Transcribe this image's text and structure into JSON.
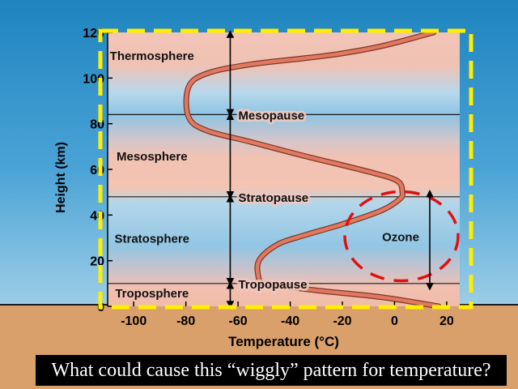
{
  "chart_data": {
    "type": "line",
    "xlabel": "Temperature (°C)",
    "ylabel": "Height (km)",
    "xlim": [
      -110,
      25
    ],
    "ylim": [
      0,
      120
    ],
    "x_ticks": [
      -100,
      -80,
      -60,
      -40,
      -20,
      0,
      20
    ],
    "y_ticks": [
      0,
      20,
      40,
      60,
      80,
      100,
      120
    ],
    "series": [
      {
        "points": [
          {
            "x": 17,
            "y": 0
          },
          {
            "x": -5,
            "y": 4
          },
          {
            "x": -30,
            "y": 7
          },
          {
            "x": -50,
            "y": 10
          },
          {
            "x": -52,
            "y": 12
          },
          {
            "x": -52,
            "y": 20
          },
          {
            "x": -45,
            "y": 27
          },
          {
            "x": -35,
            "y": 31
          },
          {
            "x": -20,
            "y": 36
          },
          {
            "x": -5,
            "y": 42
          },
          {
            "x": 2,
            "y": 47
          },
          {
            "x": 3,
            "y": 50
          },
          {
            "x": 1,
            "y": 55
          },
          {
            "x": -10,
            "y": 59
          },
          {
            "x": -35,
            "y": 66
          },
          {
            "x": -55,
            "y": 72
          },
          {
            "x": -72,
            "y": 77
          },
          {
            "x": -79,
            "y": 83
          },
          {
            "x": -79,
            "y": 96
          },
          {
            "x": -72,
            "y": 102
          },
          {
            "x": -55,
            "y": 106
          },
          {
            "x": -25,
            "y": 110
          },
          {
            "x": -5,
            "y": 114
          },
          {
            "x": 15,
            "y": 120
          }
        ]
      }
    ],
    "boundaries": [
      {
        "label": "Tropopause",
        "height": 10
      },
      {
        "label": "Stratopause",
        "height": 48
      },
      {
        "label": "Mesopause",
        "height": 84
      }
    ],
    "layers": [
      {
        "label": "Troposphere",
        "height": 6
      },
      {
        "label": "Stratosphere",
        "height": 30
      },
      {
        "label": "Mesosphere",
        "height": 66
      },
      {
        "label": "Thermosphere",
        "height": 110
      }
    ],
    "annotations": [
      {
        "label": "Ozone",
        "height": 30,
        "temp": -2
      }
    ]
  },
  "caption": "What could cause this “wiggly”  pattern for temperature?",
  "colors": {
    "sky_top": "#1e84bf",
    "sky_bottom": "#9ccde6",
    "ground": "#d9a06c",
    "band_pink": "#f0c2b4",
    "band_blue": "#96c8e4",
    "curve": "#e27860",
    "highlight": "#ffee00",
    "ozone_circle": "#e01010"
  }
}
